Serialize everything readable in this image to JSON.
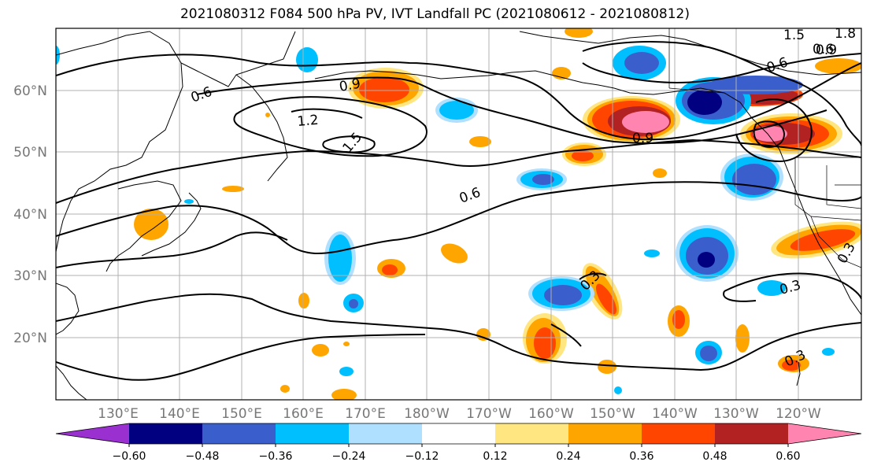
{
  "title": "2021080312 F084 500 hPa PV, IVT Landfall PC (2021080612 - 2021080812)",
  "lon_labels": [
    "130°E",
    "140°E",
    "150°E",
    "160°E",
    "170°E",
    "180°W",
    "170°W",
    "160°W",
    "150°W",
    "140°W",
    "130°W",
    "120°W"
  ],
  "lat_labels": [
    "60°N",
    "50°N",
    "40°N",
    "30°N",
    "20°N"
  ],
  "colorbar": {
    "colors": [
      "#9b30d0",
      "#000080",
      "#3a5fcd",
      "#00bfff",
      "#b0e0ff",
      "#ffffff",
      "#ffe680",
      "#ffa500",
      "#ff4500",
      "#b22222",
      "#ff85b0"
    ],
    "tick_labels": [
      "−0.60",
      "−0.48",
      "−0.36",
      "−0.24",
      "−0.12",
      "0.12",
      "0.24",
      "0.36",
      "0.48",
      "0.60"
    ]
  },
  "contour_labels": [
    "0.6",
    "0.9",
    "1.2",
    "1.5",
    "0.6",
    "0.6",
    "0.9",
    "0.6",
    "0.9",
    "1.5",
    "1.8",
    "0.3",
    "0.3",
    "0.3",
    "0.3"
  ]
}
